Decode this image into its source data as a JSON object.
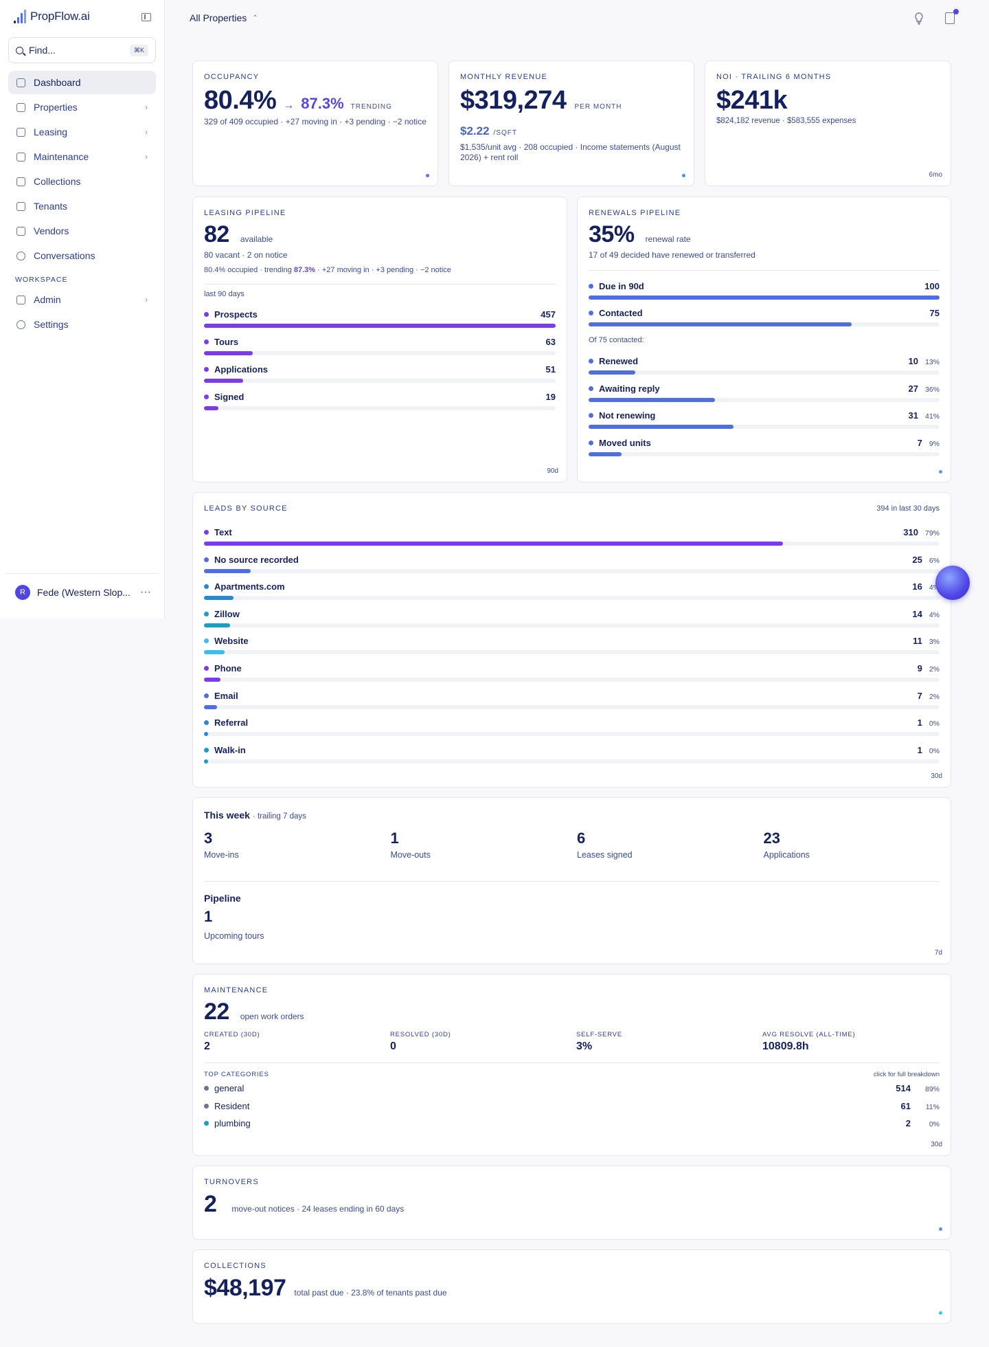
{
  "app": {
    "name": "PropFlow.ai"
  },
  "search": {
    "placeholder": "Find...",
    "shortcut": "⌘K"
  },
  "sidebar": {
    "items": [
      {
        "label": "Dashboard",
        "active": true,
        "chevron": false
      },
      {
        "label": "Properties",
        "chevron": true
      },
      {
        "label": "Leasing",
        "chevron": true
      },
      {
        "label": "Maintenance",
        "chevron": true
      },
      {
        "label": "Collections",
        "chevron": false
      },
      {
        "label": "Tenants",
        "chevron": false
      },
      {
        "label": "Vendors",
        "chevron": false
      },
      {
        "label": "Conversations",
        "chevron": false
      }
    ],
    "workspace_label": "WORKSPACE",
    "workspace_items": [
      {
        "label": "Admin",
        "chevron": true
      },
      {
        "label": "Settings",
        "chevron": false
      }
    ],
    "user": {
      "initial": "R",
      "name": "Fede (Western Slop..."
    }
  },
  "header": {
    "property_selector": "All Properties"
  },
  "occupancy": {
    "label": "OCCUPANCY",
    "value": "80.4%",
    "arrow": "→",
    "trend": "87.3%",
    "trend_tag": "TRENDING",
    "detail": "329 of 409 occupied · +27 moving in · +3 pending · −2 notice"
  },
  "revenue": {
    "label": "MONTHLY REVENUE",
    "value": "$319,274",
    "tag": "PER MONTH",
    "sqft": "$2.22",
    "sqft_tag": "/SQFT",
    "detail": "$1,535/unit avg · 208 occupied · Income statements (August 2026) + rent roll"
  },
  "noi": {
    "label": "NOI · TRAILING 6 MONTHS",
    "value": "$241k",
    "detail": "$824,182 revenue · $583,555 expenses",
    "corner": "6mo"
  },
  "leasing": {
    "label": "LEASING PIPELINE",
    "value": "82",
    "tag": "available",
    "detail1": "80 vacant · 2 on notice",
    "detail2_a": "80.4% occupied · trending ",
    "detail2_b": "87.3%",
    "detail2_c": " · +27 moving in · +3 pending · −2 notice",
    "period": "last 90 days",
    "rows": [
      {
        "label": "Prospects",
        "value": 457,
        "color": "#7c3aed"
      },
      {
        "label": "Tours",
        "value": 63,
        "color": "#7c3aed"
      },
      {
        "label": "Applications",
        "value": 51,
        "color": "#7c3aed"
      },
      {
        "label": "Signed",
        "value": 19,
        "color": "#7c3aed"
      }
    ],
    "max": 457,
    "corner": "90d"
  },
  "renewals": {
    "label": "RENEWALS PIPELINE",
    "value": "35%",
    "tag": "renewal rate",
    "detail": "17 of 49 decided have renewed or transferred",
    "top_rows": [
      {
        "label": "Due in 90d",
        "value": 100,
        "color": "#4f6fe0"
      },
      {
        "label": "Contacted",
        "value": 75,
        "color": "#4f6fe0"
      }
    ],
    "contacted_label": "Of 75 contacted:",
    "rows": [
      {
        "label": "Renewed",
        "value": 10,
        "pct": "13%",
        "color": "#4f6fe0"
      },
      {
        "label": "Awaiting reply",
        "value": 27,
        "pct": "36%",
        "color": "#4f6fe0"
      },
      {
        "label": "Not renewing",
        "value": 31,
        "pct": "41%",
        "color": "#4f6fe0"
      },
      {
        "label": "Moved units",
        "value": 7,
        "pct": "9%",
        "color": "#4f6fe0"
      }
    ]
  },
  "leads": {
    "label": "LEADS BY SOURCE",
    "summary": "394 in last 30 days",
    "total": 394,
    "rows": [
      {
        "label": "Text",
        "value": 310,
        "pct": "79%",
        "color": "#7c3aed"
      },
      {
        "label": "No source recorded",
        "value": 25,
        "pct": "6%",
        "color": "#4f6fe0"
      },
      {
        "label": "Apartments.com",
        "value": 16,
        "pct": "4%",
        "color": "#2b87d6"
      },
      {
        "label": "Zillow",
        "value": 14,
        "pct": "4%",
        "color": "#169ec4"
      },
      {
        "label": "Website",
        "value": 11,
        "pct": "3%",
        "color": "#38bdf8"
      },
      {
        "label": "Phone",
        "value": 9,
        "pct": "2%",
        "color": "#7c3aed"
      },
      {
        "label": "Email",
        "value": 7,
        "pct": "2%",
        "color": "#4f6fe0"
      },
      {
        "label": "Referral",
        "value": 1,
        "pct": "0%",
        "color": "#2b87d6"
      },
      {
        "label": "Walk-in",
        "value": 1,
        "pct": "0%",
        "color": "#169ec4"
      }
    ],
    "corner": "30d"
  },
  "week": {
    "title": "This week",
    "subtitle": "· trailing 7 days",
    "stats": [
      {
        "value": "3",
        "label": "Move-ins"
      },
      {
        "value": "1",
        "label": "Move-outs"
      },
      {
        "value": "6",
        "label": "Leases signed"
      },
      {
        "value": "23",
        "label": "Applications"
      }
    ],
    "pipeline_title": "Pipeline",
    "pipeline_value": "1",
    "pipeline_label": "Upcoming tours",
    "corner": "7d"
  },
  "maintenance": {
    "label": "MAINTENANCE",
    "value": "22",
    "tag": "open work orders",
    "metrics": [
      {
        "label": "CREATED (30D)",
        "value": "2"
      },
      {
        "label": "RESOLVED (30D)",
        "value": "0"
      },
      {
        "label": "SELF-SERVE",
        "value": "3%"
      },
      {
        "label": "AVG RESOLVE (ALL-TIME)",
        "value": "10809.8h"
      }
    ],
    "categories_label": "TOP CATEGORIES",
    "breakdown": "click for full breakdown",
    "categories": [
      {
        "label": "general",
        "value": "514",
        "pct": "89%",
        "color": "#6b7691"
      },
      {
        "label": "Resident",
        "value": "61",
        "pct": "11%",
        "color": "#6b7691"
      },
      {
        "label": "plumbing",
        "value": "2",
        "pct": "0%",
        "color": "#169ec4"
      }
    ],
    "corner": "30d"
  },
  "turnovers": {
    "label": "TURNOVERS",
    "value": "2",
    "tag": "move-out notices · 24 leases ending in 60 days"
  },
  "collections": {
    "label": "COLLECTIONS",
    "value": "$48,197",
    "tag": "total past due · 23.8% of tenants past due"
  }
}
